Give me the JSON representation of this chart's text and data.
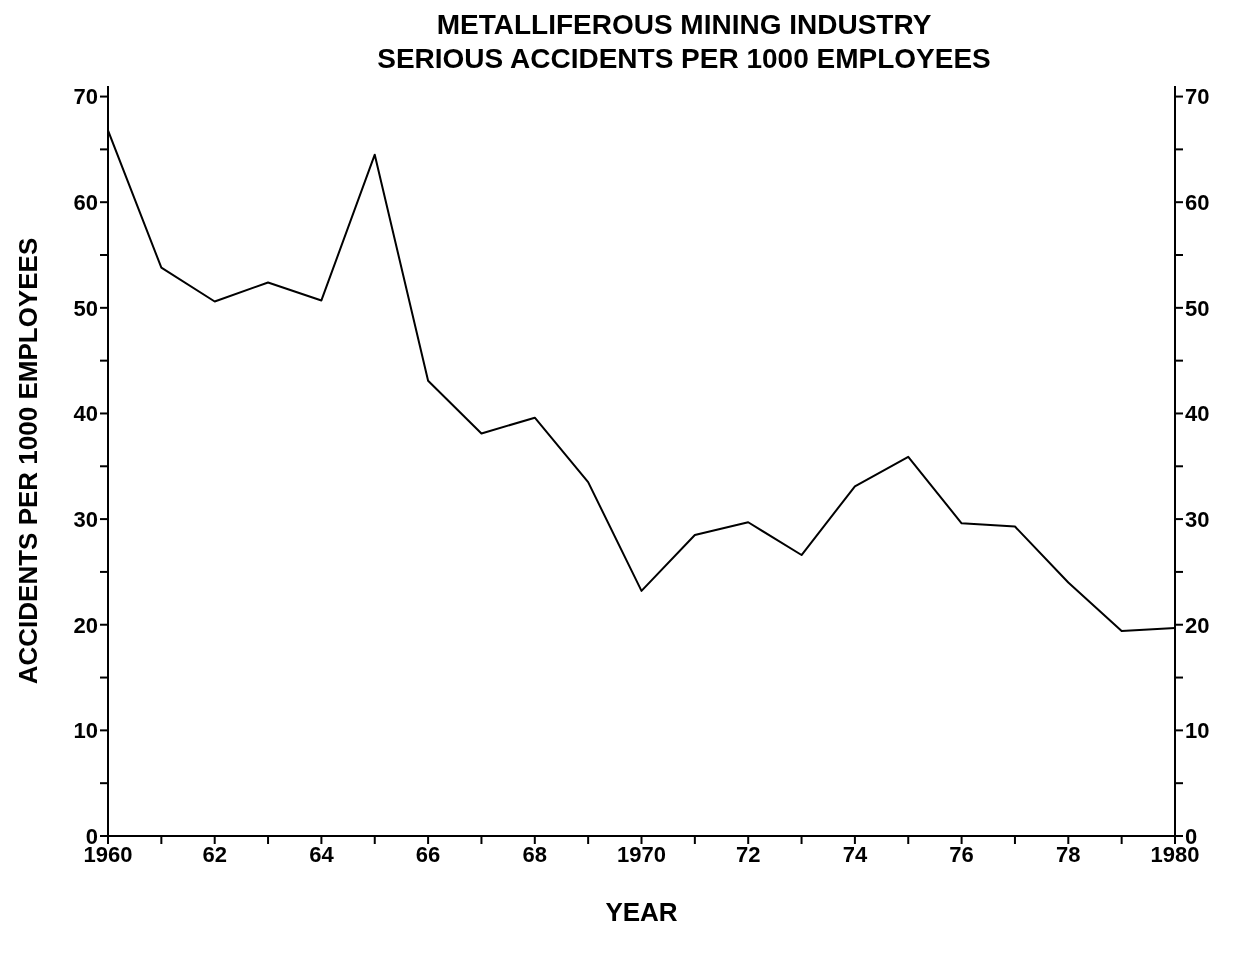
{
  "chart_data": {
    "type": "line",
    "title": "METALLIFEROUS MINING INDUSTRY",
    "subtitle": "SERIOUS ACCIDENTS PER 1000 EMPLOYEES",
    "xlabel": "YEAR",
    "ylabel": "ACCIDENTS PER 1000 EMPLOYEES",
    "x": [
      1960,
      1961,
      1962,
      1963,
      1964,
      1965,
      1966,
      1967,
      1968,
      1969,
      1970,
      1971,
      1972,
      1973,
      1974,
      1975,
      1976,
      1977,
      1978,
      1979,
      1980
    ],
    "series": [
      {
        "color": "#000000",
        "values": [
          66.8,
          53.8,
          50.6,
          52.4,
          50.7,
          64.5,
          43.1,
          38.1,
          39.6,
          33.5,
          23.2,
          28.5,
          29.7,
          26.6,
          33.1,
          35.9,
          29.6,
          29.3,
          24.0,
          19.4,
          19.7
        ]
      }
    ],
    "xlim": [
      1960,
      1980
    ],
    "xticks": [
      1960,
      {
        "value": 1961,
        "label": null
      },
      {
        "value": 1962,
        "label": "62"
      },
      {
        "value": 1963,
        "label": null
      },
      {
        "value": 1964,
        "label": "64"
      },
      {
        "value": 1965,
        "label": null
      },
      {
        "value": 1966,
        "label": "66"
      },
      {
        "value": 1967,
        "label": null
      },
      {
        "value": 1968,
        "label": "68"
      },
      {
        "value": 1969,
        "label": null
      },
      1970,
      {
        "value": 1971,
        "label": null
      },
      {
        "value": 1972,
        "label": "72"
      },
      {
        "value": 1973,
        "label": null
      },
      {
        "value": 1974,
        "label": "74"
      },
      {
        "value": 1975,
        "label": null
      },
      {
        "value": 1976,
        "label": "76"
      },
      {
        "value": 1977,
        "label": null
      },
      {
        "value": 1978,
        "label": "78"
      },
      {
        "value": 1979,
        "label": null
      },
      1980
    ],
    "ylim": [
      0,
      71
    ],
    "yticks": [
      0,
      {
        "value": 5,
        "label": null
      },
      10,
      {
        "value": 15,
        "label": null
      },
      20,
      {
        "value": 25,
        "label": null
      },
      30,
      {
        "value": 35,
        "label": null
      },
      40,
      {
        "value": 45,
        "label": null
      },
      50,
      {
        "value": 55,
        "label": null
      },
      60,
      {
        "value": 65,
        "label": null
      },
      70
    ],
    "y2lim": [
      0,
      71
    ],
    "y2ticks": [
      0,
      {
        "value": 5,
        "label": null
      },
      10,
      {
        "value": 15,
        "label": null
      },
      20,
      {
        "value": 25,
        "label": null
      },
      30,
      {
        "value": 35,
        "label": null
      },
      40,
      {
        "value": 45,
        "label": null
      },
      50,
      {
        "value": 55,
        "label": null
      },
      60,
      {
        "value": 65,
        "label": null
      },
      70
    ],
    "marker": "none",
    "line_style": "solid"
  }
}
